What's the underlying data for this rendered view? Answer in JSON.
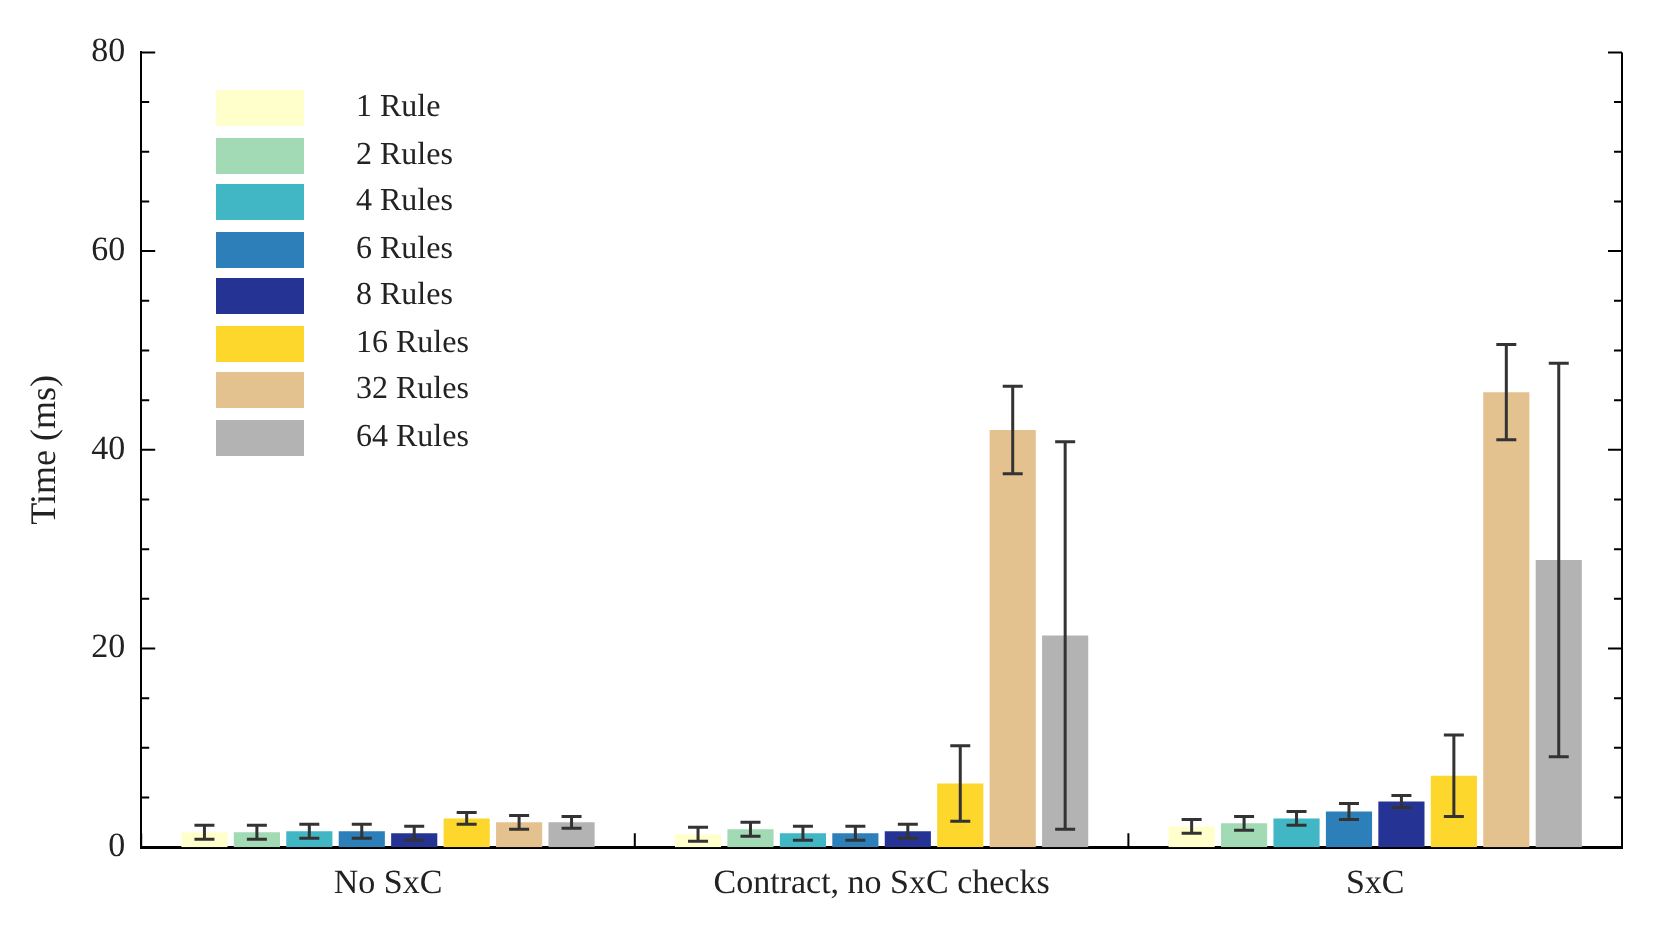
{
  "chart_data": {
    "type": "bar",
    "ylabel": "Time (ms)",
    "categories": [
      "No SxC",
      "Contract, no SxC checks",
      "SxC"
    ],
    "ylim": [
      0,
      80
    ],
    "yticks": [
      0,
      20,
      40,
      60,
      80
    ],
    "grid": false,
    "legend": "top left",
    "series": [
      {
        "name": "1 Rule",
        "color": "#ffffcc",
        "values": [
          1.5,
          1.3,
          2.1
        ],
        "errors": [
          0.7,
          0.7,
          0.7
        ]
      },
      {
        "name": "2 Rules",
        "color": "#a1dab4",
        "values": [
          1.5,
          1.8,
          2.4
        ],
        "errors": [
          0.7,
          0.7,
          0.7
        ]
      },
      {
        "name": "4 Rules",
        "color": "#41b6c4",
        "values": [
          1.6,
          1.4,
          2.9
        ],
        "errors": [
          0.7,
          0.7,
          0.7
        ]
      },
      {
        "name": "6 Rules",
        "color": "#2c7fb8",
        "values": [
          1.6,
          1.4,
          3.6
        ],
        "errors": [
          0.7,
          0.7,
          0.8
        ]
      },
      {
        "name": "8 Rules",
        "color": "#253494",
        "values": [
          1.4,
          1.6,
          4.6
        ],
        "errors": [
          0.7,
          0.7,
          0.6
        ]
      },
      {
        "name": "16 Rules",
        "color": "#fed72c",
        "values": [
          2.9,
          6.4,
          7.2
        ],
        "errors": [
          0.6,
          3.8,
          4.1
        ]
      },
      {
        "name": "32 Rules",
        "color": "#e3c28f",
        "values": [
          2.5,
          42,
          45.8
        ],
        "errors": [
          0.7,
          4.4,
          4.8
        ]
      },
      {
        "name": "64 Rules",
        "color": "#b3b3b3",
        "values": [
          2.5,
          21.3,
          28.9
        ],
        "errors": [
          0.6,
          19.5,
          19.8
        ]
      }
    ]
  }
}
